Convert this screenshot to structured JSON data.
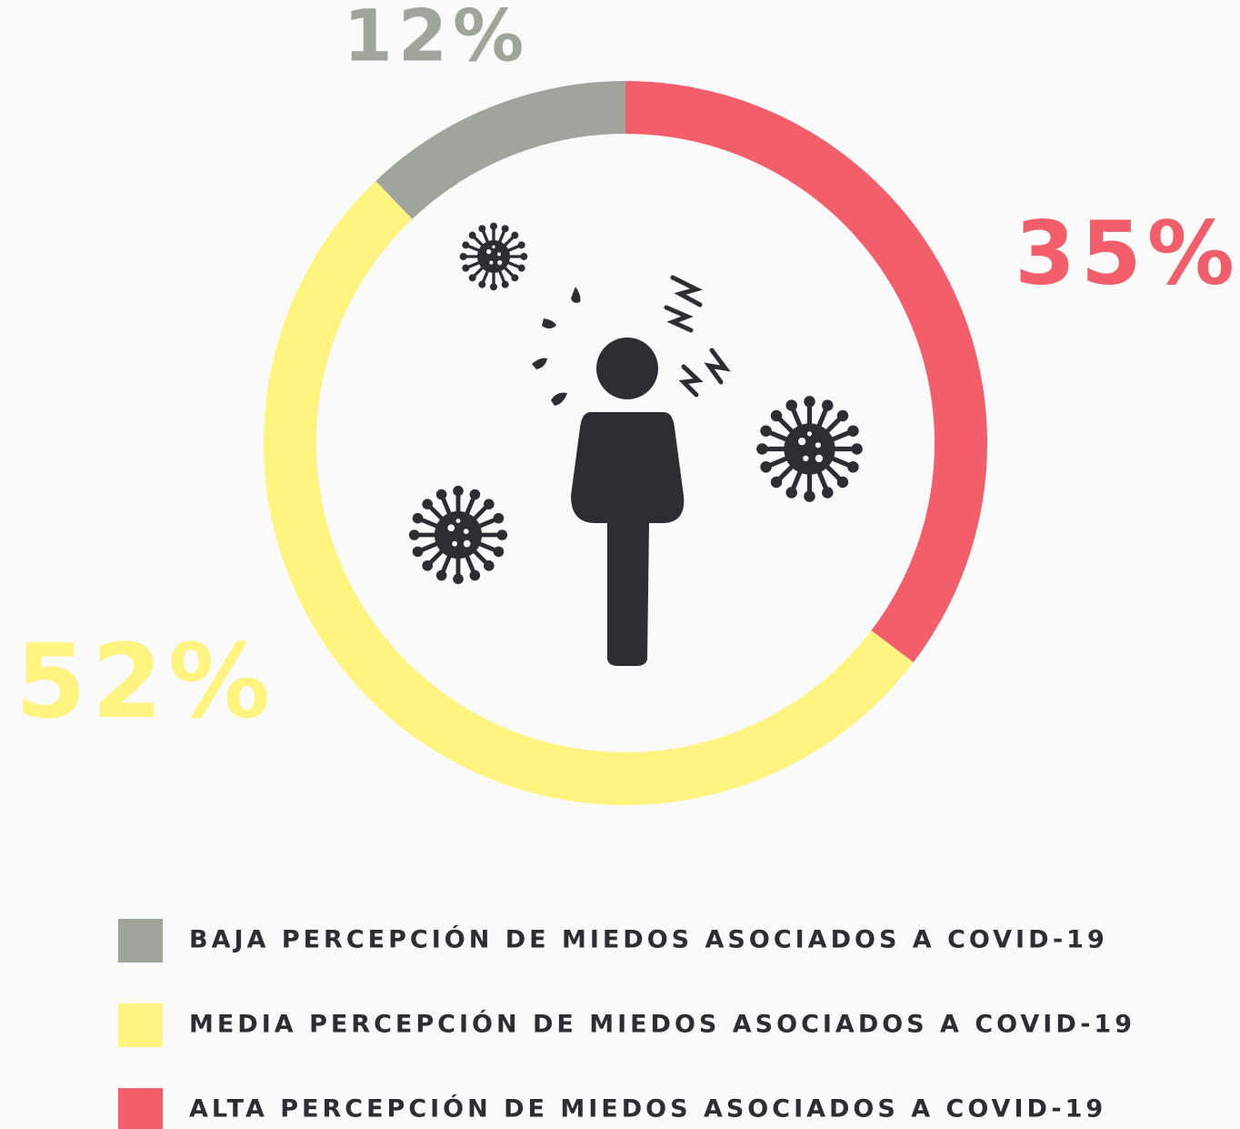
{
  "chart_data": {
    "type": "donut",
    "categories": [
      "BAJA PERCEPCIÓN DE MIEDOS ASOCIADOS A COVID-19",
      "MEDIA PERCEPCIÓN DE MIEDOS ASOCIADOS A COVID-19",
      "ALTA PERCEPCIÓN DE MIEDOS ASOCIADOS A COVID-19"
    ],
    "values": [
      12,
      52,
      35
    ],
    "value_labels": [
      "12%",
      "52%",
      "35%"
    ],
    "colors": [
      "#9fa59b",
      "#fff47f",
      "#f25f6b"
    ]
  }
}
